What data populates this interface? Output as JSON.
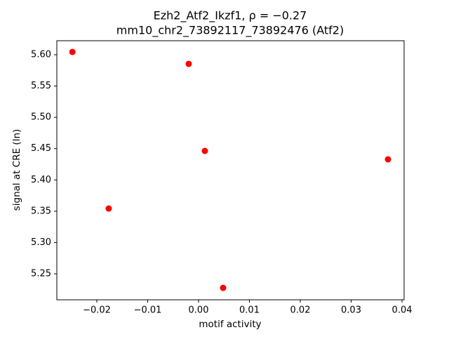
{
  "chart_data": {
    "type": "scatter",
    "title": "Ezh2_Atf2_Ikzf1, ρ = −0.27",
    "subtitle": "mm10_chr2_73892117_73892476 (Atf2)",
    "x_label": "motif activity",
    "y_label": "signal at CRE (ln)",
    "color": "#ff0000",
    "x": [
      -0.0248,
      -0.00193,
      0.00124,
      0.03724,
      -0.01766,
      0.00483
    ],
    "values": [
      5.6045,
      5.5854,
      5.4463,
      5.4329,
      5.3543,
      5.2275
    ],
    "xlim": [
      -0.02786,
      0.04041
    ],
    "ylim": [
      5.2085,
      5.6224
    ],
    "xticks": [
      {
        "value": -0.02,
        "label": "−0.02"
      },
      {
        "value": -0.01,
        "label": "−0.01"
      },
      {
        "value": 0,
        "label": "0.00"
      },
      0.01,
      0.02,
      0.03,
      0.04
    ],
    "yticks": [
      {
        "value": 5.25,
        "label": "5.25"
      },
      {
        "value": 5.3,
        "label": "5.30"
      },
      5.35,
      {
        "value": 5.4,
        "label": "5.40"
      },
      5.45,
      {
        "value": 5.5,
        "label": "5.50"
      },
      5.55,
      {
        "value": 5.6,
        "label": "5.60"
      }
    ],
    "grid": false
  }
}
